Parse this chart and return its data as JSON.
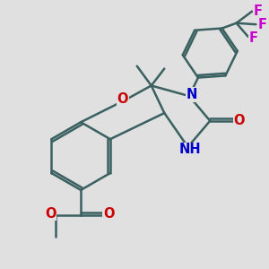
{
  "background_color": "#e0e0e0",
  "bond_color": "#3a6060",
  "bond_width": 1.8,
  "atom_colors": {
    "O": "#cc0000",
    "N": "#0000cc",
    "F": "#cc00cc",
    "C": "#3a6060"
  },
  "font_size": 10.5,
  "figsize": [
    3.0,
    3.0
  ],
  "dpi": 100
}
